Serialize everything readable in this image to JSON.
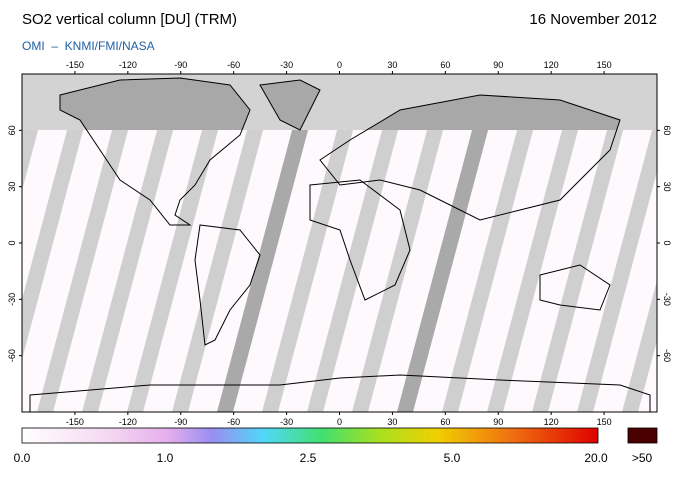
{
  "header": {
    "title": "SO2 vertical column [DU] (TRM)",
    "date": "16 November 2012",
    "subtitle": "OMI  –  KNMI/FMI/NASA"
  },
  "map": {
    "lon_range": [
      -180,
      180
    ],
    "lat_range": [
      -90,
      90
    ],
    "lon_ticks": [
      -150,
      -120,
      -90,
      -60,
      -30,
      0,
      30,
      60,
      90,
      120,
      150
    ],
    "lat_ticks": [
      60,
      30,
      0,
      -30,
      -60
    ]
  },
  "colorbar": {
    "labels": [
      "0.0",
      "1.0",
      "2.5",
      "5.0",
      "20.0"
    ],
    "overflow_label": ">50"
  }
}
